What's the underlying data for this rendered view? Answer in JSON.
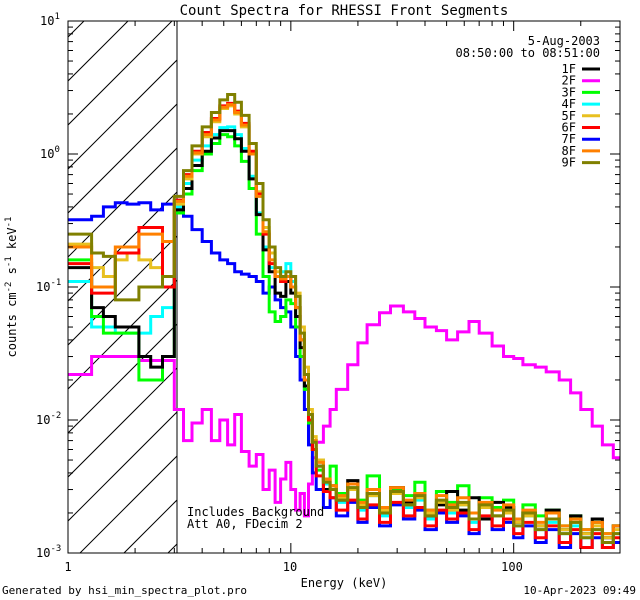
{
  "chart_data": {
    "type": "line",
    "title": "Count Spectra for RHESSI Front Segments",
    "xlabel": "Energy (keV)",
    "ylabel_main": "counts cm",
    "ylabel_sup1": "-2",
    "ylabel_mid": " s",
    "ylabel_sup2": "-1",
    "ylabel_end": " keV",
    "ylabel_sup3": "-1",
    "xscale": "log",
    "yscale": "log",
    "xlim": [
      1,
      300
    ],
    "ylim": [
      0.001,
      10
    ],
    "x_ticks": [
      {
        "value": 1,
        "label": "1"
      },
      {
        "value": 10,
        "label": "10"
      },
      {
        "value": 100,
        "label": "100"
      }
    ],
    "y_ticks": [
      {
        "value": 0.001,
        "base": "10",
        "exp": "-3"
      },
      {
        "value": 0.01,
        "base": "10",
        "exp": "-2"
      },
      {
        "value": 0.1,
        "base": "10",
        "exp": "-1"
      },
      {
        "value": 1,
        "base": "10",
        "exp": "0"
      },
      {
        "value": 10,
        "base": "10",
        "exp": "1"
      }
    ],
    "hatched_region": [
      1,
      3
    ],
    "date": "5-Aug-2003",
    "time_range": "08:50:00 to 08:51:00",
    "annotation_line1": "Includes Background",
    "annotation_line2": "Att A0, FDecim 2",
    "footer_left": "Generated by hsi_min_spectra_plot.pro",
    "footer_right": "10-Apr-2023 09:49",
    "energy_edges": [
      3,
      3.3,
      3.6,
      4,
      4.4,
      4.8,
      5.2,
      5.6,
      6,
      6.5,
      7,
      7.5,
      8,
      8.5,
      9,
      9.5,
      10,
      10.5,
      11,
      11.5,
      12,
      12.5,
      13,
      14,
      15,
      16,
      18,
      20,
      22,
      25,
      28,
      32,
      36,
      40,
      45,
      50,
      56,
      63,
      70,
      80,
      90,
      100,
      110,
      125,
      140,
      160,
      180,
      200,
      225,
      250,
      280,
      300
    ],
    "series": [
      {
        "name": "1F",
        "color": "#000000",
        "pre": [
          0.14,
          0.14,
          0.07,
          0.06,
          0.05,
          0.05,
          0.03,
          0.025,
          0.03
        ],
        "values": [
          0.38,
          0.55,
          0.82,
          1.05,
          1.32,
          1.5,
          1.5,
          1.3,
          1.05,
          0.65,
          0.35,
          0.19,
          0.13,
          0.09,
          0.085,
          0.11,
          0.09,
          0.06,
          0.035,
          0.018,
          0.01,
          0.006,
          0.0045,
          0.003,
          0.0032,
          0.0025,
          0.0035,
          0.0022,
          0.0028,
          0.002,
          0.0031,
          0.0024,
          0.0027,
          0.0019,
          0.0023,
          0.0029,
          0.0021,
          0.0026,
          0.0018,
          0.0024,
          0.0022,
          0.0017,
          0.002,
          0.0016,
          0.0021,
          0.0015,
          0.0019,
          0.0014,
          0.0018,
          0.0013,
          0.0016
        ]
      },
      {
        "name": "2F",
        "color": "#ff00ff",
        "pre": [
          0.022,
          0.022,
          0.03,
          0.03,
          0.03,
          0.03,
          0.028,
          0.028,
          0.028
        ],
        "values": [
          0.012,
          0.007,
          0.0095,
          0.012,
          0.007,
          0.01,
          0.0065,
          0.011,
          0.0058,
          0.0045,
          0.0055,
          0.003,
          0.0042,
          0.0024,
          0.0036,
          0.0048,
          0.003,
          0.0021,
          0.0028,
          0.0019,
          0.0033,
          0.0052,
          0.0068,
          0.009,
          0.012,
          0.017,
          0.026,
          0.038,
          0.052,
          0.064,
          0.072,
          0.065,
          0.058,
          0.05,
          0.047,
          0.04,
          0.046,
          0.055,
          0.045,
          0.036,
          0.03,
          0.029,
          0.026,
          0.025,
          0.023,
          0.02,
          0.016,
          0.012,
          0.009,
          0.0065,
          0.0052
        ]
      },
      {
        "name": "3F",
        "color": "#00ff00",
        "pre": [
          0.16,
          0.16,
          0.06,
          0.045,
          0.045,
          0.045,
          0.02,
          0.02,
          0.03
        ],
        "values": [
          0.36,
          0.5,
          0.75,
          1.0,
          1.2,
          1.4,
          1.35,
          1.15,
          0.88,
          0.55,
          0.25,
          0.12,
          0.065,
          0.055,
          0.06,
          0.08,
          0.075,
          0.05,
          0.03,
          0.017,
          0.0095,
          0.006,
          0.0042,
          0.0036,
          0.0045,
          0.0028,
          0.0033,
          0.0025,
          0.0038,
          0.0022,
          0.003,
          0.0027,
          0.0034,
          0.0021,
          0.0029,
          0.0024,
          0.0032,
          0.002,
          0.0026,
          0.0022,
          0.0025,
          0.0018,
          0.0023,
          0.0019,
          0.0021,
          0.0016,
          0.0019,
          0.0015,
          0.0017,
          0.0014,
          0.0016
        ]
      },
      {
        "name": "4F",
        "color": "#00ffff",
        "pre": [
          0.11,
          0.11,
          0.05,
          0.05,
          0.045,
          0.045,
          0.045,
          0.06,
          0.07
        ],
        "values": [
          0.4,
          0.6,
          0.9,
          1.15,
          1.4,
          1.58,
          1.6,
          1.4,
          1.1,
          0.68,
          0.36,
          0.2,
          0.14,
          0.12,
          0.13,
          0.15,
          0.11,
          0.07,
          0.04,
          0.02,
          0.011,
          0.007,
          0.005,
          0.0033,
          0.003,
          0.0024,
          0.0031,
          0.0021,
          0.0027,
          0.0019,
          0.0028,
          0.0022,
          0.0025,
          0.0018,
          0.0024,
          0.002,
          0.0023,
          0.0017,
          0.0022,
          0.0019,
          0.002,
          0.0016,
          0.0019,
          0.0015,
          0.0017,
          0.0014,
          0.0016,
          0.0013,
          0.0015,
          0.0012,
          0.0014
        ]
      },
      {
        "name": "5F",
        "color": "#e8c020",
        "pre": [
          0.21,
          0.21,
          0.14,
          0.12,
          0.16,
          0.18,
          0.16,
          0.14,
          0.12
        ],
        "values": [
          0.42,
          0.65,
          1.0,
          1.35,
          1.75,
          2.2,
          2.3,
          2.0,
          1.6,
          1.0,
          0.52,
          0.28,
          0.18,
          0.13,
          0.11,
          0.12,
          0.12,
          0.09,
          0.05,
          0.025,
          0.012,
          0.0075,
          0.005,
          0.0035,
          0.0032,
          0.0026,
          0.003,
          0.0023,
          0.0027,
          0.0021,
          0.0028,
          0.0023,
          0.0026,
          0.002,
          0.0024,
          0.0021,
          0.0023,
          0.0018,
          0.0022,
          0.0019,
          0.002,
          0.0017,
          0.0019,
          0.0016,
          0.0018,
          0.0015,
          0.0017,
          0.0014,
          0.0016,
          0.0013,
          0.0015
        ]
      },
      {
        "name": "6F",
        "color": "#ff0000",
        "pre": [
          0.15,
          0.15,
          0.09,
          0.09,
          0.18,
          0.18,
          0.28,
          0.28,
          0.1
        ],
        "values": [
          0.45,
          0.7,
          1.05,
          1.45,
          1.85,
          2.3,
          2.4,
          2.1,
          1.7,
          1.05,
          0.5,
          0.25,
          0.15,
          0.12,
          0.11,
          0.12,
          0.1,
          0.07,
          0.04,
          0.02,
          0.01,
          0.006,
          0.0038,
          0.0029,
          0.0026,
          0.0021,
          0.0025,
          0.0018,
          0.0023,
          0.0017,
          0.0024,
          0.0019,
          0.0022,
          0.0016,
          0.0021,
          0.0018,
          0.002,
          0.0015,
          0.0019,
          0.0016,
          0.0018,
          0.0014,
          0.0017,
          0.0013,
          0.0016,
          0.0012,
          0.0015,
          0.0011,
          0.0014,
          0.0011,
          0.0013
        ]
      },
      {
        "name": "7F",
        "color": "#0000ff",
        "pre": [
          0.32,
          0.32,
          0.34,
          0.4,
          0.43,
          0.42,
          0.43,
          0.38,
          0.42
        ],
        "values": [
          0.4,
          0.34,
          0.27,
          0.22,
          0.18,
          0.16,
          0.15,
          0.13,
          0.125,
          0.12,
          0.11,
          0.09,
          0.1,
          0.08,
          0.07,
          0.065,
          0.05,
          0.03,
          0.02,
          0.012,
          0.0065,
          0.004,
          0.003,
          0.0022,
          0.0026,
          0.0019,
          0.0024,
          0.0017,
          0.0022,
          0.0016,
          0.0023,
          0.0018,
          0.0021,
          0.0015,
          0.002,
          0.0017,
          0.0019,
          0.0014,
          0.0018,
          0.0015,
          0.0017,
          0.0013,
          0.0016,
          0.0012,
          0.0015,
          0.0011,
          0.0014,
          0.0011,
          0.0013,
          0.0011,
          0.0012
        ]
      },
      {
        "name": "8F",
        "color": "#ff8000",
        "pre": [
          0.2,
          0.2,
          0.1,
          0.1,
          0.2,
          0.2,
          0.25,
          0.25,
          0.22
        ],
        "values": [
          0.44,
          0.68,
          1.02,
          1.4,
          1.8,
          2.25,
          2.35,
          2.05,
          1.65,
          1.0,
          0.48,
          0.26,
          0.16,
          0.12,
          0.115,
          0.12,
          0.1,
          0.07,
          0.04,
          0.02,
          0.011,
          0.007,
          0.0048,
          0.0036,
          0.0032,
          0.0027,
          0.0033,
          0.0024,
          0.003,
          0.0022,
          0.0031,
          0.0025,
          0.0028,
          0.0021,
          0.0027,
          0.0023,
          0.0026,
          0.002,
          0.0024,
          0.0021,
          0.0023,
          0.0018,
          0.0021,
          0.0017,
          0.002,
          0.0016,
          0.0018,
          0.0015,
          0.0017,
          0.0014,
          0.0016
        ]
      },
      {
        "name": "9F",
        "color": "#808000",
        "pre": [
          0.25,
          0.25,
          0.18,
          0.17,
          0.08,
          0.08,
          0.1,
          0.1,
          0.12
        ],
        "values": [
          0.48,
          0.75,
          1.15,
          1.6,
          2.05,
          2.55,
          2.8,
          2.45,
          1.95,
          1.2,
          0.6,
          0.32,
          0.2,
          0.14,
          0.12,
          0.13,
          0.12,
          0.085,
          0.045,
          0.022,
          0.011,
          0.0068,
          0.0045,
          0.0034,
          0.003,
          0.0025,
          0.0031,
          0.0022,
          0.0028,
          0.002,
          0.0029,
          0.0023,
          0.0027,
          0.0019,
          0.0025,
          0.0022,
          0.0024,
          0.0018,
          0.0023,
          0.0019,
          0.0021,
          0.0016,
          0.002,
          0.0015,
          0.0018,
          0.0014,
          0.0017,
          0.0013,
          0.0015,
          0.0012,
          0.0014
        ]
      }
    ]
  }
}
